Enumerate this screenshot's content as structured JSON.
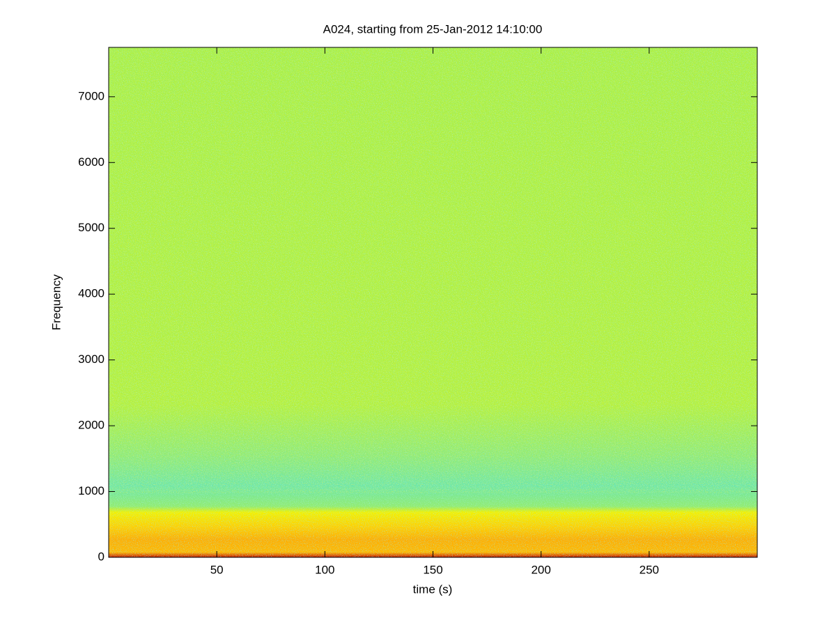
{
  "chart_data": {
    "type": "spectrogram",
    "title": "A024, starting from 25-Jan-2012 14:10:00",
    "x_label": "time (s)",
    "y_label": "Frequency",
    "xlim": [
      0,
      300
    ],
    "xticks": [
      50,
      100,
      150,
      200,
      250
    ],
    "ylim": [
      0,
      7750
    ],
    "yticks": [
      0,
      1000,
      2000,
      3000,
      4000,
      5000,
      6000,
      7000
    ]
  }
}
